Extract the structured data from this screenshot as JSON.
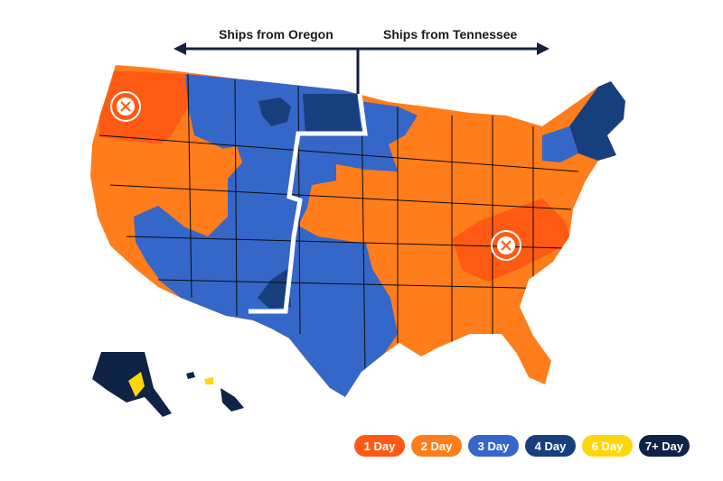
{
  "arrows": {
    "left_label": "Ships from Oregon",
    "right_label": "Ships from Tennessee"
  },
  "warehouses": [
    {
      "name": "Oregon",
      "icon": "warehouse-pin-icon"
    },
    {
      "name": "Tennessee",
      "icon": "warehouse-pin-icon"
    }
  ],
  "colors": {
    "day1": "#ff5a14",
    "day2": "#ff7d1a",
    "day3": "#3567c8",
    "day4": "#173f7e",
    "day6": "#ffd60a",
    "day7plus": "#0f2347",
    "divider": "#ffffff",
    "arrow": "#14213d",
    "state_border": "#0b0b0b"
  },
  "legend": [
    {
      "label": "1 Day",
      "color": "#ff5a14"
    },
    {
      "label": "2 Day",
      "color": "#ff7d1a"
    },
    {
      "label": "3 Day",
      "color": "#3567c8"
    },
    {
      "label": "4 Day",
      "color": "#173f7e"
    },
    {
      "label": "6 Day",
      "color": "#ffd60a"
    },
    {
      "label": "7+ Day",
      "color": "#0f2347"
    }
  ]
}
